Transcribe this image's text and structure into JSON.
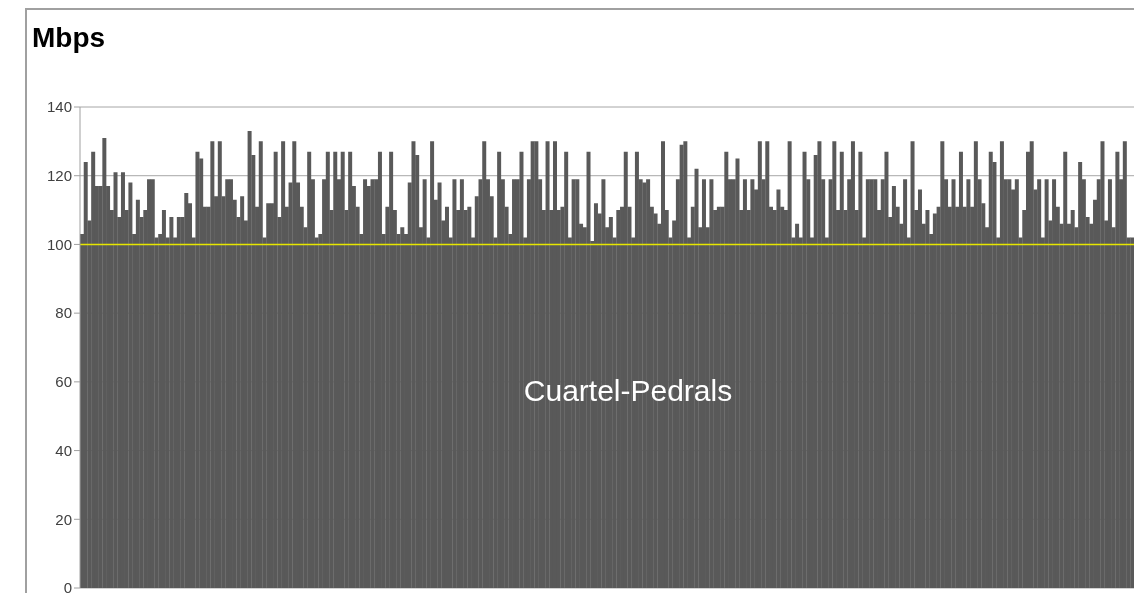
{
  "chart_data": {
    "type": "bar",
    "title": "Mbps",
    "categories": [
      null,
      null,
      null,
      null,
      null,
      null,
      null,
      null,
      null,
      null,
      null,
      null,
      null,
      null,
      null,
      null,
      null,
      null,
      null,
      null,
      null,
      null,
      null,
      null,
      null,
      null,
      null,
      null,
      null,
      null,
      null,
      null,
      null,
      null,
      null,
      null,
      null,
      null,
      null,
      null,
      null,
      null,
      null,
      null,
      null,
      null,
      null,
      null,
      null,
      null,
      null,
      null,
      null,
      null,
      null,
      null,
      null,
      null,
      null,
      null,
      null,
      null,
      null,
      null,
      null,
      null,
      null,
      null,
      null,
      null,
      null,
      null,
      null,
      null,
      null,
      null,
      null,
      null,
      null,
      null,
      null,
      null,
      null,
      null,
      null,
      null,
      null,
      null,
      null,
      null,
      null,
      null,
      null,
      null,
      null,
      null,
      null,
      null,
      null,
      null,
      null,
      null,
      null,
      null,
      null,
      null,
      null,
      null,
      null,
      null,
      null,
      null,
      null,
      null,
      null,
      null,
      null,
      null,
      null,
      null,
      null,
      null,
      null,
      null,
      null,
      null,
      null,
      null,
      null,
      null,
      null,
      null,
      null,
      null,
      null,
      null,
      null,
      null,
      null,
      null,
      null,
      null,
      null,
      null,
      null,
      null,
      null,
      null,
      null,
      null,
      null,
      null,
      null,
      null,
      null,
      null,
      null,
      null,
      null,
      null,
      null,
      null,
      null,
      null,
      null,
      null,
      null,
      null,
      null,
      null,
      null,
      null,
      null,
      null,
      null,
      null,
      null,
      null,
      null,
      null,
      null,
      null,
      null,
      null,
      null,
      null,
      null,
      null,
      null,
      null,
      null,
      null,
      null,
      null,
      null,
      null,
      null,
      null,
      null,
      null,
      null,
      null,
      null,
      null,
      null,
      null,
      null,
      null,
      null,
      null,
      null,
      null,
      null,
      null,
      null,
      null,
      null,
      null,
      null,
      null,
      null,
      null,
      null,
      null,
      null,
      null,
      null,
      null,
      null,
      null,
      null,
      null,
      null,
      null,
      null,
      null,
      null,
      null,
      null,
      null,
      null,
      null,
      null,
      null,
      null,
      null,
      null,
      null,
      null,
      null,
      null,
      null,
      null,
      null,
      null,
      null,
      null,
      null,
      null,
      null,
      null,
      null,
      null,
      null,
      null,
      null,
      null,
      null,
      null,
      null,
      null,
      null,
      null,
      null,
      null,
      null,
      null,
      null,
      null,
      null,
      null,
      null,
      null
    ],
    "series": [
      {
        "name": "Cuartel-Pedrals",
        "color": "#595959",
        "values": [
          103,
          124,
          107,
          127,
          117,
          117,
          131,
          117,
          110,
          121,
          108,
          121,
          110,
          118,
          103,
          113,
          108,
          110,
          119,
          119,
          102,
          103,
          110,
          102,
          108,
          102,
          108,
          108,
          115,
          112,
          102,
          127,
          125,
          111,
          111,
          130,
          114,
          130,
          114,
          119,
          119,
          113,
          108,
          114,
          107,
          133,
          126,
          111,
          130,
          102,
          112,
          112,
          127,
          108,
          130,
          111,
          118,
          130,
          118,
          111,
          105,
          127,
          119,
          102,
          103,
          119,
          127,
          110,
          127,
          119,
          127,
          110,
          127,
          117,
          111,
          103,
          119,
          117,
          119,
          119,
          127,
          103,
          111,
          127,
          110,
          103,
          105,
          103,
          118,
          130,
          126,
          105,
          119,
          102,
          130,
          113,
          118,
          107,
          111,
          102,
          119,
          110,
          119,
          110,
          111,
          102,
          114,
          119,
          130,
          119,
          114,
          102,
          127,
          119,
          111,
          103,
          119,
          119,
          127,
          102,
          119,
          130,
          130,
          119,
          110,
          130,
          110,
          130,
          110,
          111,
          127,
          102,
          119,
          119,
          106,
          105,
          127,
          101,
          112,
          109,
          119,
          105,
          108,
          102,
          110,
          111,
          127,
          111,
          102,
          127,
          119,
          118,
          119,
          111,
          109,
          106,
          130,
          110,
          102,
          107,
          119,
          129,
          130,
          102,
          111,
          122,
          105,
          119,
          105,
          119,
          110,
          111,
          111,
          127,
          119,
          119,
          125,
          110,
          119,
          110,
          119,
          116,
          130,
          119,
          130,
          111,
          110,
          116,
          111,
          110,
          130,
          102,
          106,
          102,
          127,
          119,
          102,
          126,
          130,
          119,
          102,
          119,
          130,
          110,
          127,
          110,
          119,
          130,
          110,
          127,
          102,
          119,
          119,
          119,
          110,
          119,
          127,
          108,
          117,
          111,
          106,
          119,
          102,
          130,
          110,
          116,
          106,
          110,
          103,
          109,
          111,
          130,
          119,
          111,
          119,
          111,
          127,
          111,
          119,
          111,
          130,
          119,
          112,
          105,
          127,
          124,
          102,
          130,
          119,
          119,
          116,
          119,
          102,
          110,
          127,
          130,
          116,
          119,
          102,
          119,
          107,
          119,
          111,
          106,
          127,
          106,
          110,
          105,
          124,
          119,
          108,
          106,
          113,
          119,
          130,
          107,
          119,
          105,
          127,
          119,
          130,
          102,
          102
        ]
      }
    ],
    "ylim": [
      0,
      140
    ],
    "yticks": [
      0,
      20,
      40,
      60,
      80,
      100,
      120,
      140
    ],
    "grid": "y",
    "tick_labels": "y",
    "ref_lines": [
      {
        "axis": "y",
        "value": 100,
        "color": "#e6e600"
      }
    ]
  }
}
